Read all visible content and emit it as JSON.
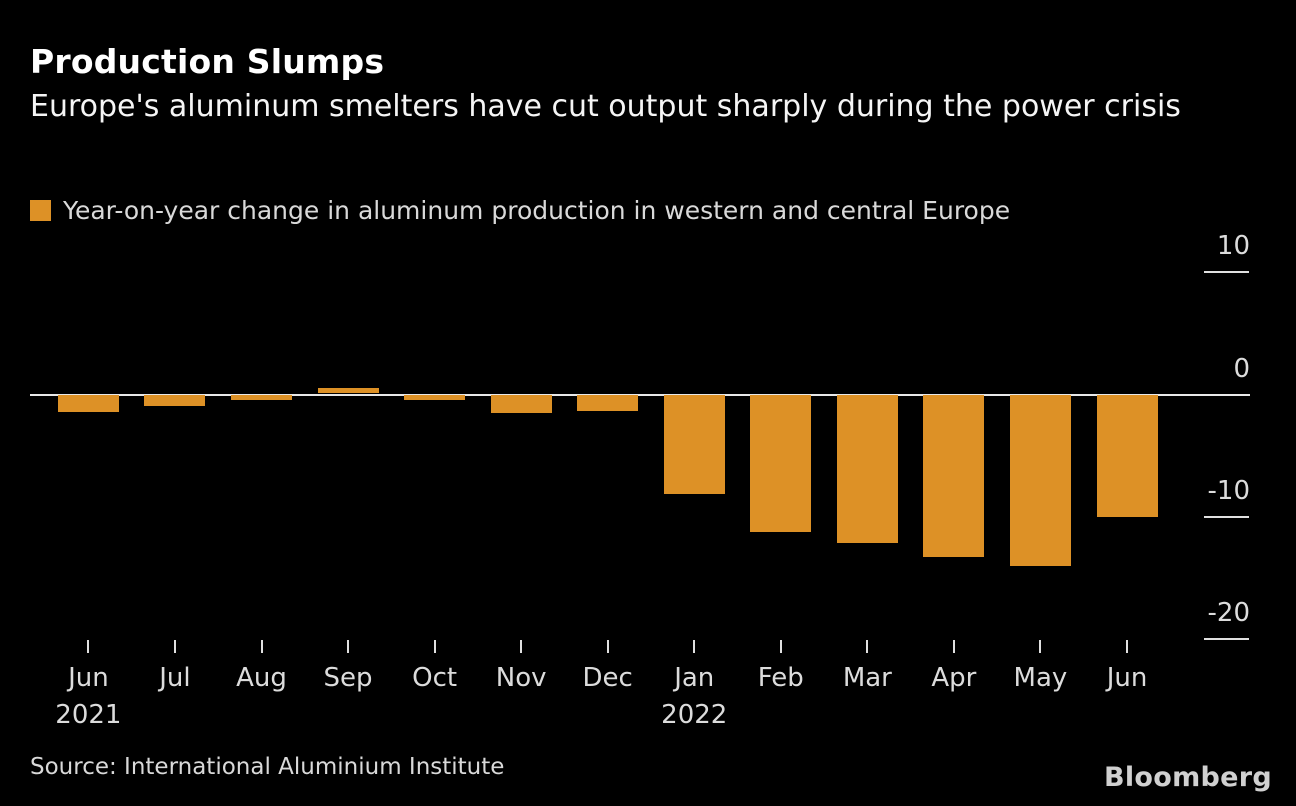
{
  "page": {
    "background_color": "#000000",
    "accent_color": "#DD9126",
    "text_color": "#FFFFFF",
    "muted_text_color": "#D9D9D9"
  },
  "header": {
    "title": "Production Slumps",
    "subtitle": "Europe's aluminum smelters have cut output sharply during the power crisis"
  },
  "legend": {
    "label": "Year-on-year change in aluminum production in western and central Europe",
    "swatch_color": "#DD9126"
  },
  "footer": {
    "source": "Source: International Aluminium Institute",
    "brand": "Bloomberg"
  },
  "chart_data": {
    "type": "bar",
    "title": "Production Slumps",
    "subtitle": "Europe's aluminum smelters have cut output sharply during the power crisis",
    "legend_entries": [
      "Year-on-year change in aluminum production in western and central Europe"
    ],
    "legend_position": "top-left",
    "categories": [
      "Jun 2021",
      "Jul",
      "Aug",
      "Sep",
      "Oct",
      "Nov",
      "Dec",
      "Jan 2022",
      "Feb",
      "Mar",
      "Apr",
      "May",
      "Jun"
    ],
    "values": [
      -1.4,
      -0.9,
      -0.4,
      0.4,
      -0.4,
      -1.5,
      -1.3,
      -8.1,
      -11.2,
      -12.1,
      -13.2,
      -14.0,
      -10.0
    ],
    "xlabel": "",
    "ylabel": "",
    "yticks": [
      10,
      0,
      -10,
      -20
    ],
    "ylim": [
      -22,
      11
    ],
    "grid": "off",
    "bar_color": "#DD9126",
    "baseline_color": "#E8E8E8"
  }
}
